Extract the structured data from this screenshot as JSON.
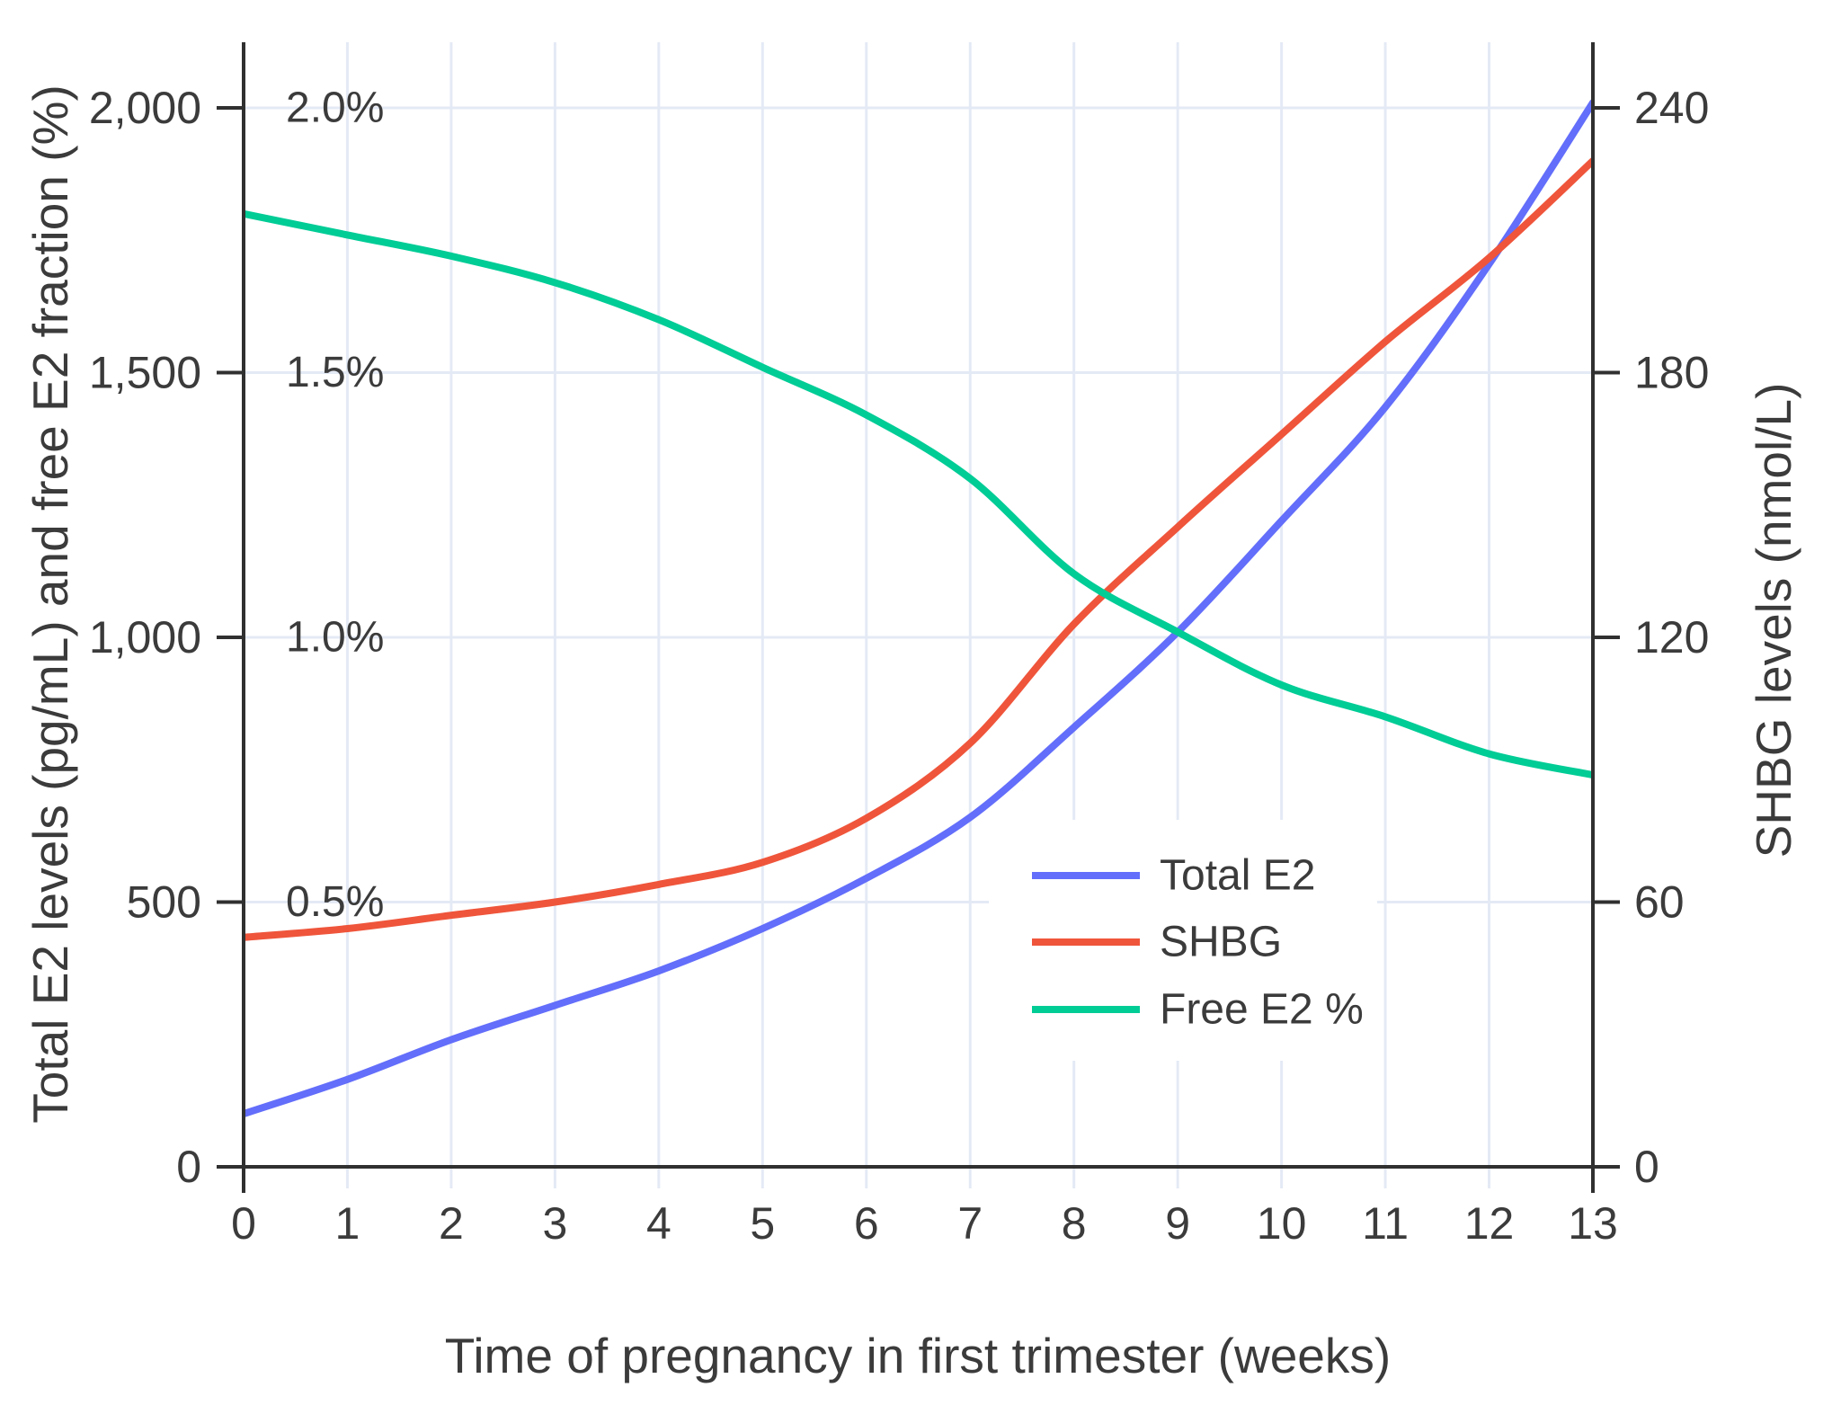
{
  "chart_data": {
    "type": "line",
    "title": "",
    "x_label": "Time of pregnancy in first trimester (weeks)",
    "y_left_label": "Total E2 levels (pg/mL) and free E2 fraction (%)",
    "y_right_label": "SHBG levels (nmol/L)",
    "x": [
      0,
      1,
      2,
      3,
      4,
      5,
      6,
      7,
      8,
      9,
      10,
      11,
      12,
      13
    ],
    "x_tick_labels": [
      "0",
      "1",
      "2",
      "3",
      "4",
      "5",
      "6",
      "7",
      "8",
      "9",
      "10",
      "11",
      "12",
      "13"
    ],
    "x_range": [
      0,
      13
    ],
    "y_left_range": [
      0,
      2125
    ],
    "y_right_range": [
      0,
      255
    ],
    "grid": true,
    "legend_position": "inside-right-middle",
    "y_left_ticks": [
      {
        "value": 0,
        "label": "0"
      },
      {
        "value": 500,
        "label": "500"
      },
      {
        "value": 1000,
        "label": "1,000"
      },
      {
        "value": 1500,
        "label": "1,500"
      },
      {
        "value": 2000,
        "label": "2,000"
      }
    ],
    "y_right_ticks": [
      {
        "value": 0,
        "label": "0"
      },
      {
        "value": 60,
        "label": "60"
      },
      {
        "value": 120,
        "label": "120"
      },
      {
        "value": 180,
        "label": "180"
      },
      {
        "value": 240,
        "label": "240"
      }
    ],
    "pct_annotations": [
      {
        "label": "0.5%",
        "left_value": 500
      },
      {
        "label": "1.0%",
        "left_value": 1000
      },
      {
        "label": "1.5%",
        "left_value": 1500
      },
      {
        "label": "2.0%",
        "left_value": 2000
      }
    ],
    "series": [
      {
        "name": "Total E2",
        "axis": "left",
        "unit": "pg/mL",
        "color": "#636EFA",
        "values": [
          100,
          165,
          240,
          305,
          370,
          450,
          545,
          660,
          830,
          1010,
          1220,
          1435,
          1705,
          2010
        ]
      },
      {
        "name": "SHBG",
        "axis": "right",
        "unit": "nmol/L",
        "color": "#EF553B",
        "values": [
          52,
          54,
          57,
          60,
          64,
          69,
          79,
          96,
          123,
          145,
          166,
          187,
          206,
          228
        ]
      },
      {
        "name": "Free E2 %",
        "axis": "percent",
        "unit": "%",
        "color": "#00CC96",
        "values": [
          1.8,
          1.76,
          1.72,
          1.67,
          1.6,
          1.51,
          1.42,
          1.3,
          1.12,
          1.01,
          0.91,
          0.85,
          0.78,
          0.74
        ]
      }
    ],
    "colors": {
      "grid": "#E4EAF5",
      "axis": "#303030",
      "text": "#3B3B3B",
      "background": "#FFFFFF",
      "legend_background": "#FFFFFF"
    }
  }
}
